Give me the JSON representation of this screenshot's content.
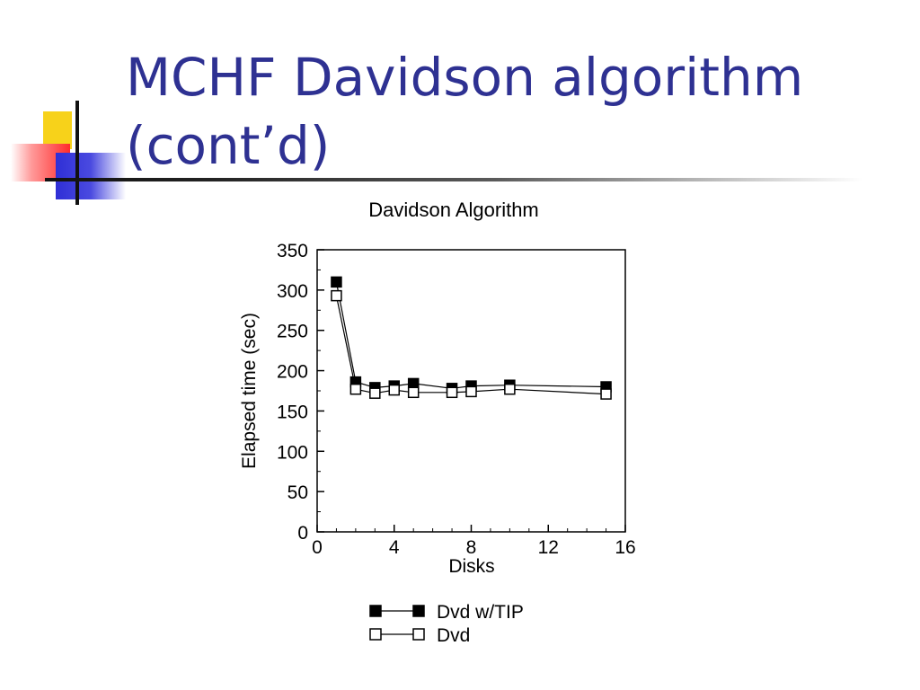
{
  "slide": {
    "title_line1": "MCHF Davidson algorithm",
    "title_line2": "(cont’d)"
  },
  "chart_data": {
    "type": "line",
    "title": "Davidson Algorithm",
    "xlabel": "Disks",
    "ylabel": "Elapsed time (sec)",
    "xlim": [
      0,
      16
    ],
    "ylim": [
      0,
      350
    ],
    "xticks": [
      0,
      4,
      8,
      12,
      16
    ],
    "yticks": [
      0,
      50,
      100,
      150,
      200,
      250,
      300,
      350
    ],
    "grid": false,
    "legend_position": "bottom",
    "series": [
      {
        "name": "Dvd w/TIP",
        "marker": "filled-square",
        "x": [
          1,
          2,
          3,
          4,
          5,
          7,
          8,
          10,
          15
        ],
        "y": [
          310,
          186,
          179,
          181,
          184,
          178,
          181,
          182,
          180
        ]
      },
      {
        "name": "Dvd",
        "marker": "open-square",
        "x": [
          1,
          2,
          3,
          4,
          5,
          7,
          8,
          10,
          15
        ],
        "y": [
          293,
          177,
          172,
          176,
          173,
          173,
          174,
          177,
          171
        ]
      }
    ]
  }
}
